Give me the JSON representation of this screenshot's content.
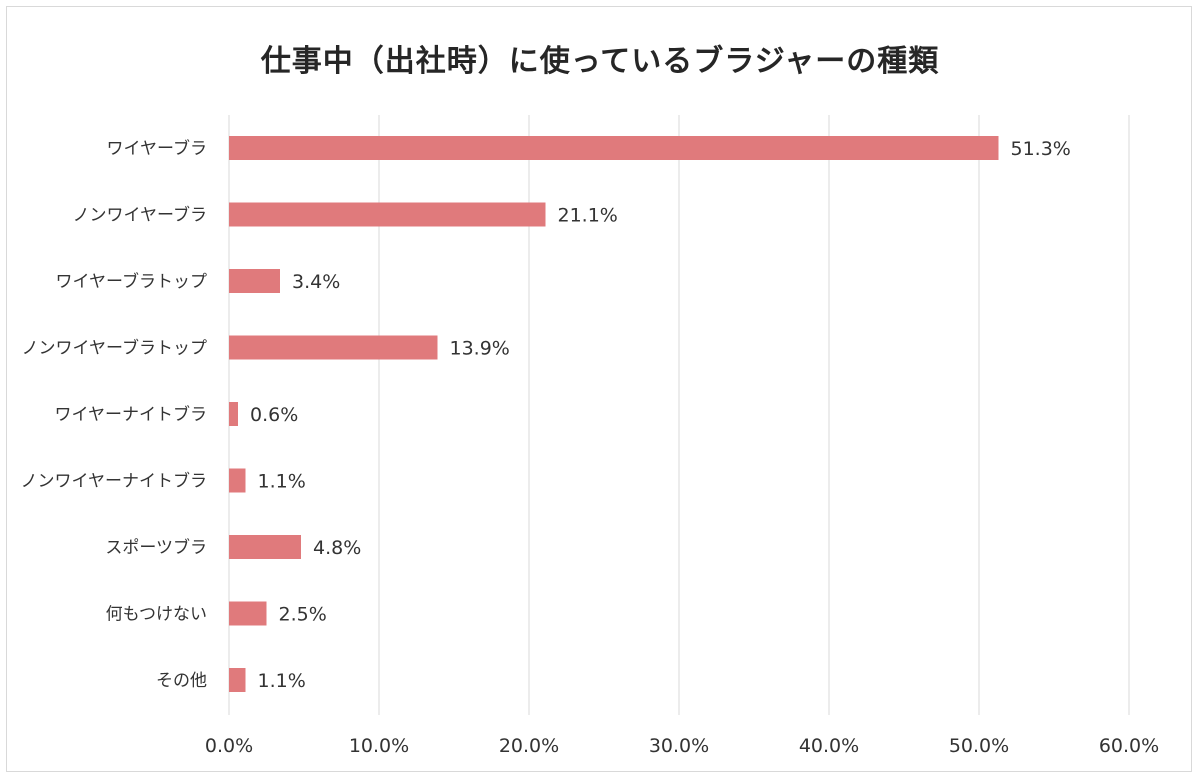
{
  "chart_data": {
    "type": "bar",
    "orientation": "horizontal",
    "title": "仕事中（出社時）に使っているブラジャーの種類",
    "categories": [
      "ワイヤーブラ",
      "ノンワイヤーブラ",
      "ワイヤーブラトップ",
      "ノンワイヤーブラトップ",
      "ワイヤーナイトブラ",
      "ノンワイヤーナイトブラ",
      "スポーツブラ",
      "何もつけない",
      "その他"
    ],
    "values": [
      51.3,
      21.1,
      3.4,
      13.9,
      0.6,
      1.1,
      4.8,
      2.5,
      1.1
    ],
    "data_labels": [
      "51.3%",
      "21.1%",
      "3.4%",
      "13.9%",
      "0.6%",
      "1.1%",
      "4.8%",
      "2.5%",
      "1.1%"
    ],
    "x_ticks": [
      "0.0%",
      "10.0%",
      "20.0%",
      "30.0%",
      "40.0%",
      "50.0%",
      "60.0%"
    ],
    "xlim": [
      0,
      60
    ],
    "xlabel": "",
    "ylabel": "",
    "grid": "vertical",
    "legend": "none",
    "bar_color": "#e07a7c",
    "gridline_color": "#d9d9d9"
  }
}
